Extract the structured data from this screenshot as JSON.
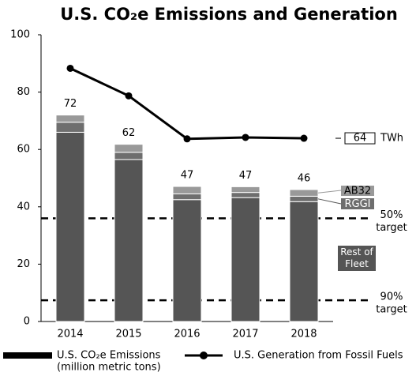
{
  "chart_data": {
    "type": "bar",
    "stacked": true,
    "title": "U.S. CO₂e Emissions and Generation",
    "categories": [
      "2014",
      "2015",
      "2016",
      "2017",
      "2018"
    ],
    "series": [
      {
        "name": "Rest of Fleet",
        "color": "#555555",
        "values": [
          66,
          56.5,
          42.5,
          43.2,
          41.8
        ]
      },
      {
        "name": "RGGI",
        "color": "#6e6e6e",
        "values": [
          3.5,
          2.5,
          2,
          1.8,
          1.9
        ]
      },
      {
        "name": "AB32",
        "color": "#999999",
        "values": [
          2.5,
          2.8,
          2.6,
          2,
          2.3
        ]
      },
      {
        "name": "U.S. Generation from Fossil Fuels",
        "type": "line",
        "color": "#000000",
        "values": [
          88.3,
          78.7,
          63.7,
          64.2,
          63.9
        ]
      }
    ],
    "total_labels": [
      72,
      62,
      47,
      47,
      46
    ],
    "line_end_label": {
      "value": 64,
      "unit": "TWh"
    },
    "targets": [
      {
        "lines": [
          "50%",
          "target"
        ],
        "value": 36
      },
      {
        "lines": [
          "90%",
          "target"
        ],
        "value": 7.4
      }
    ],
    "legend": [
      {
        "label": "U.S. CO₂e Emissions",
        "sublabel": "(million metric tons)"
      },
      {
        "label": "U.S. Generation from Fossil Fuels"
      }
    ],
    "ylim": [
      0,
      100
    ],
    "yticks": [
      0,
      20,
      40,
      60,
      80,
      100
    ]
  }
}
